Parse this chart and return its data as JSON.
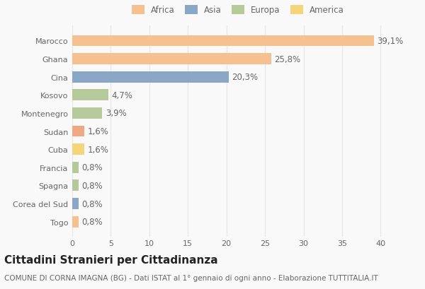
{
  "categories": [
    "Marocco",
    "Ghana",
    "Cina",
    "Kosovo",
    "Montenegro",
    "Sudan",
    "Cuba",
    "Francia",
    "Spagna",
    "Corea del Sud",
    "Togo"
  ],
  "values": [
    39.1,
    25.8,
    20.3,
    4.7,
    3.9,
    1.6,
    1.6,
    0.8,
    0.8,
    0.8,
    0.8
  ],
  "labels": [
    "39,1%",
    "25,8%",
    "20,3%",
    "4,7%",
    "3,9%",
    "1,6%",
    "1,6%",
    "0,8%",
    "0,8%",
    "0,8%",
    "0,8%"
  ],
  "colors": [
    "#F5C191",
    "#F5C191",
    "#8BA7C7",
    "#B5C99A",
    "#B5C99A",
    "#F0A882",
    "#F5D57A",
    "#B5C99A",
    "#B5C99A",
    "#8BA7C7",
    "#F5C191"
  ],
  "legend_labels": [
    "Africa",
    "Asia",
    "Europa",
    "America"
  ],
  "legend_colors": [
    "#F5C191",
    "#8BA7C7",
    "#B5C99A",
    "#F5D57A"
  ],
  "title": "Cittadini Stranieri per Cittadinanza",
  "subtitle": "COMUNE DI CORNA IMAGNA (BG) - Dati ISTAT al 1° gennaio di ogni anno - Elaborazione TUTTITALIA.IT",
  "xlabel_ticks": [
    0,
    5,
    10,
    15,
    20,
    25,
    30,
    35,
    40
  ],
  "xlim": [
    0,
    43
  ],
  "background_color": "#f9f9f9",
  "grid_color": "#e8e8e8",
  "title_fontsize": 11,
  "subtitle_fontsize": 7.5,
  "tick_fontsize": 8,
  "label_fontsize": 8.5
}
